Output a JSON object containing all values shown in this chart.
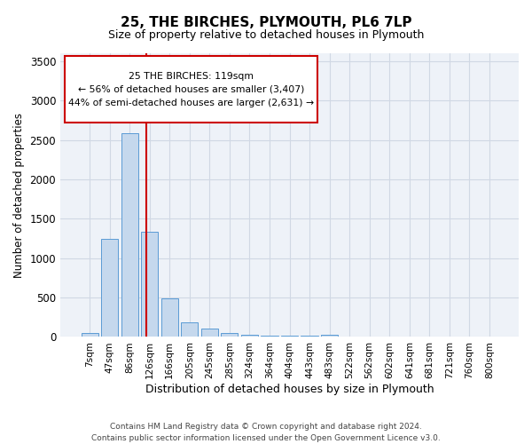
{
  "title": "25, THE BIRCHES, PLYMOUTH, PL6 7LP",
  "subtitle": "Size of property relative to detached houses in Plymouth",
  "xlabel": "Distribution of detached houses by size in Plymouth",
  "ylabel": "Number of detached properties",
  "footer_line1": "Contains HM Land Registry data © Crown copyright and database right 2024.",
  "footer_line2": "Contains public sector information licensed under the Open Government Licence v3.0.",
  "bar_labels": [
    "7sqm",
    "47sqm",
    "86sqm",
    "126sqm",
    "166sqm",
    "205sqm",
    "245sqm",
    "285sqm",
    "324sqm",
    "364sqm",
    "404sqm",
    "443sqm",
    "483sqm",
    "522sqm",
    "562sqm",
    "602sqm",
    "641sqm",
    "681sqm",
    "721sqm",
    "760sqm",
    "800sqm"
  ],
  "bar_values": [
    50,
    1240,
    2590,
    1340,
    490,
    185,
    110,
    50,
    30,
    20,
    20,
    20,
    30,
    0,
    0,
    0,
    0,
    0,
    0,
    0,
    0
  ],
  "bar_color": "#c5d8ed",
  "bar_edge_color": "#5b9bd5",
  "grid_color": "#d0d8e4",
  "background_color": "#eef2f8",
  "anno_line1": "25 THE BIRCHES: 119sqm",
  "anno_line2": "← 56% of detached houses are smaller (3,407)",
  "anno_line3": "44% of semi-detached houses are larger (2,631) →",
  "vline_color": "#cc0000",
  "ylim": [
    0,
    3600
  ],
  "yticks": [
    0,
    500,
    1000,
    1500,
    2000,
    2500,
    3000,
    3500
  ]
}
